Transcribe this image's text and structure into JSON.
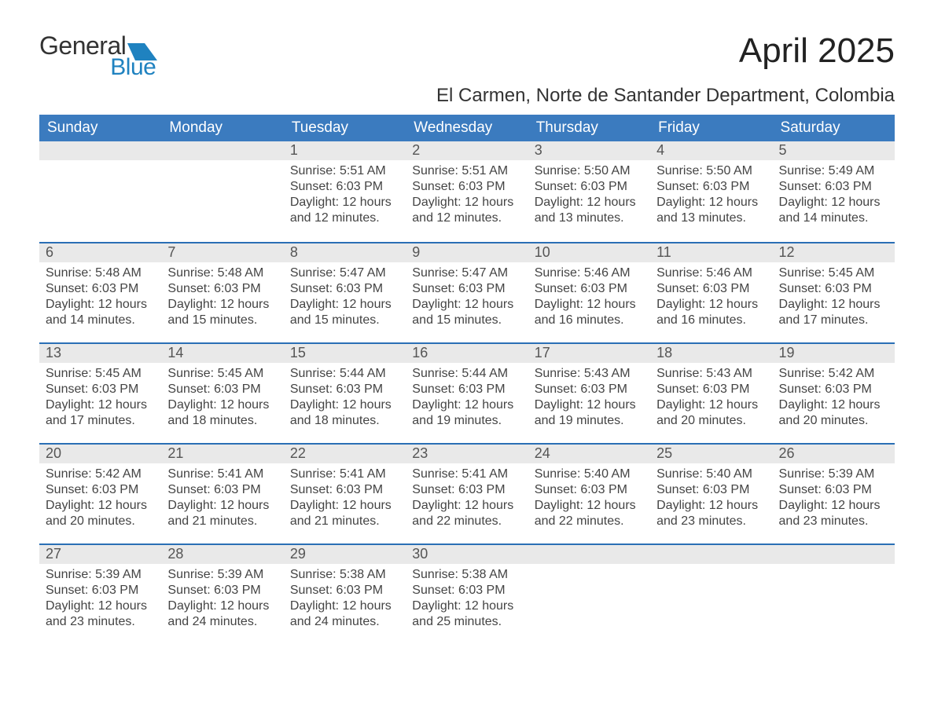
{
  "logo": {
    "word1": "General",
    "word2": "Blue",
    "mark_color": "#1f82c0"
  },
  "header": {
    "month_title": "April 2025",
    "location": "El Carmen, Norte de Santander Department, Colombia"
  },
  "calendar": {
    "header_bg": "#3b7bbf",
    "accent_line": "#2a6fb5",
    "daynum_bg": "#e9e9e9",
    "days_of_week": [
      "Sunday",
      "Monday",
      "Tuesday",
      "Wednesday",
      "Thursday",
      "Friday",
      "Saturday"
    ],
    "weeks": [
      [
        {
          "n": "",
          "sunrise": "",
          "sunset": "",
          "daylight": ""
        },
        {
          "n": "",
          "sunrise": "",
          "sunset": "",
          "daylight": ""
        },
        {
          "n": "1",
          "sunrise": "Sunrise: 5:51 AM",
          "sunset": "Sunset: 6:03 PM",
          "daylight": "Daylight: 12 hours and 12 minutes."
        },
        {
          "n": "2",
          "sunrise": "Sunrise: 5:51 AM",
          "sunset": "Sunset: 6:03 PM",
          "daylight": "Daylight: 12 hours and 12 minutes."
        },
        {
          "n": "3",
          "sunrise": "Sunrise: 5:50 AM",
          "sunset": "Sunset: 6:03 PM",
          "daylight": "Daylight: 12 hours and 13 minutes."
        },
        {
          "n": "4",
          "sunrise": "Sunrise: 5:50 AM",
          "sunset": "Sunset: 6:03 PM",
          "daylight": "Daylight: 12 hours and 13 minutes."
        },
        {
          "n": "5",
          "sunrise": "Sunrise: 5:49 AM",
          "sunset": "Sunset: 6:03 PM",
          "daylight": "Daylight: 12 hours and 14 minutes."
        }
      ],
      [
        {
          "n": "6",
          "sunrise": "Sunrise: 5:48 AM",
          "sunset": "Sunset: 6:03 PM",
          "daylight": "Daylight: 12 hours and 14 minutes."
        },
        {
          "n": "7",
          "sunrise": "Sunrise: 5:48 AM",
          "sunset": "Sunset: 6:03 PM",
          "daylight": "Daylight: 12 hours and 15 minutes."
        },
        {
          "n": "8",
          "sunrise": "Sunrise: 5:47 AM",
          "sunset": "Sunset: 6:03 PM",
          "daylight": "Daylight: 12 hours and 15 minutes."
        },
        {
          "n": "9",
          "sunrise": "Sunrise: 5:47 AM",
          "sunset": "Sunset: 6:03 PM",
          "daylight": "Daylight: 12 hours and 15 minutes."
        },
        {
          "n": "10",
          "sunrise": "Sunrise: 5:46 AM",
          "sunset": "Sunset: 6:03 PM",
          "daylight": "Daylight: 12 hours and 16 minutes."
        },
        {
          "n": "11",
          "sunrise": "Sunrise: 5:46 AM",
          "sunset": "Sunset: 6:03 PM",
          "daylight": "Daylight: 12 hours and 16 minutes."
        },
        {
          "n": "12",
          "sunrise": "Sunrise: 5:45 AM",
          "sunset": "Sunset: 6:03 PM",
          "daylight": "Daylight: 12 hours and 17 minutes."
        }
      ],
      [
        {
          "n": "13",
          "sunrise": "Sunrise: 5:45 AM",
          "sunset": "Sunset: 6:03 PM",
          "daylight": "Daylight: 12 hours and 17 minutes."
        },
        {
          "n": "14",
          "sunrise": "Sunrise: 5:45 AM",
          "sunset": "Sunset: 6:03 PM",
          "daylight": "Daylight: 12 hours and 18 minutes."
        },
        {
          "n": "15",
          "sunrise": "Sunrise: 5:44 AM",
          "sunset": "Sunset: 6:03 PM",
          "daylight": "Daylight: 12 hours and 18 minutes."
        },
        {
          "n": "16",
          "sunrise": "Sunrise: 5:44 AM",
          "sunset": "Sunset: 6:03 PM",
          "daylight": "Daylight: 12 hours and 19 minutes."
        },
        {
          "n": "17",
          "sunrise": "Sunrise: 5:43 AM",
          "sunset": "Sunset: 6:03 PM",
          "daylight": "Daylight: 12 hours and 19 minutes."
        },
        {
          "n": "18",
          "sunrise": "Sunrise: 5:43 AM",
          "sunset": "Sunset: 6:03 PM",
          "daylight": "Daylight: 12 hours and 20 minutes."
        },
        {
          "n": "19",
          "sunrise": "Sunrise: 5:42 AM",
          "sunset": "Sunset: 6:03 PM",
          "daylight": "Daylight: 12 hours and 20 minutes."
        }
      ],
      [
        {
          "n": "20",
          "sunrise": "Sunrise: 5:42 AM",
          "sunset": "Sunset: 6:03 PM",
          "daylight": "Daylight: 12 hours and 20 minutes."
        },
        {
          "n": "21",
          "sunrise": "Sunrise: 5:41 AM",
          "sunset": "Sunset: 6:03 PM",
          "daylight": "Daylight: 12 hours and 21 minutes."
        },
        {
          "n": "22",
          "sunrise": "Sunrise: 5:41 AM",
          "sunset": "Sunset: 6:03 PM",
          "daylight": "Daylight: 12 hours and 21 minutes."
        },
        {
          "n": "23",
          "sunrise": "Sunrise: 5:41 AM",
          "sunset": "Sunset: 6:03 PM",
          "daylight": "Daylight: 12 hours and 22 minutes."
        },
        {
          "n": "24",
          "sunrise": "Sunrise: 5:40 AM",
          "sunset": "Sunset: 6:03 PM",
          "daylight": "Daylight: 12 hours and 22 minutes."
        },
        {
          "n": "25",
          "sunrise": "Sunrise: 5:40 AM",
          "sunset": "Sunset: 6:03 PM",
          "daylight": "Daylight: 12 hours and 23 minutes."
        },
        {
          "n": "26",
          "sunrise": "Sunrise: 5:39 AM",
          "sunset": "Sunset: 6:03 PM",
          "daylight": "Daylight: 12 hours and 23 minutes."
        }
      ],
      [
        {
          "n": "27",
          "sunrise": "Sunrise: 5:39 AM",
          "sunset": "Sunset: 6:03 PM",
          "daylight": "Daylight: 12 hours and 23 minutes."
        },
        {
          "n": "28",
          "sunrise": "Sunrise: 5:39 AM",
          "sunset": "Sunset: 6:03 PM",
          "daylight": "Daylight: 12 hours and 24 minutes."
        },
        {
          "n": "29",
          "sunrise": "Sunrise: 5:38 AM",
          "sunset": "Sunset: 6:03 PM",
          "daylight": "Daylight: 12 hours and 24 minutes."
        },
        {
          "n": "30",
          "sunrise": "Sunrise: 5:38 AM",
          "sunset": "Sunset: 6:03 PM",
          "daylight": "Daylight: 12 hours and 25 minutes."
        },
        {
          "n": "",
          "sunrise": "",
          "sunset": "",
          "daylight": ""
        },
        {
          "n": "",
          "sunrise": "",
          "sunset": "",
          "daylight": ""
        },
        {
          "n": "",
          "sunrise": "",
          "sunset": "",
          "daylight": ""
        }
      ]
    ]
  }
}
